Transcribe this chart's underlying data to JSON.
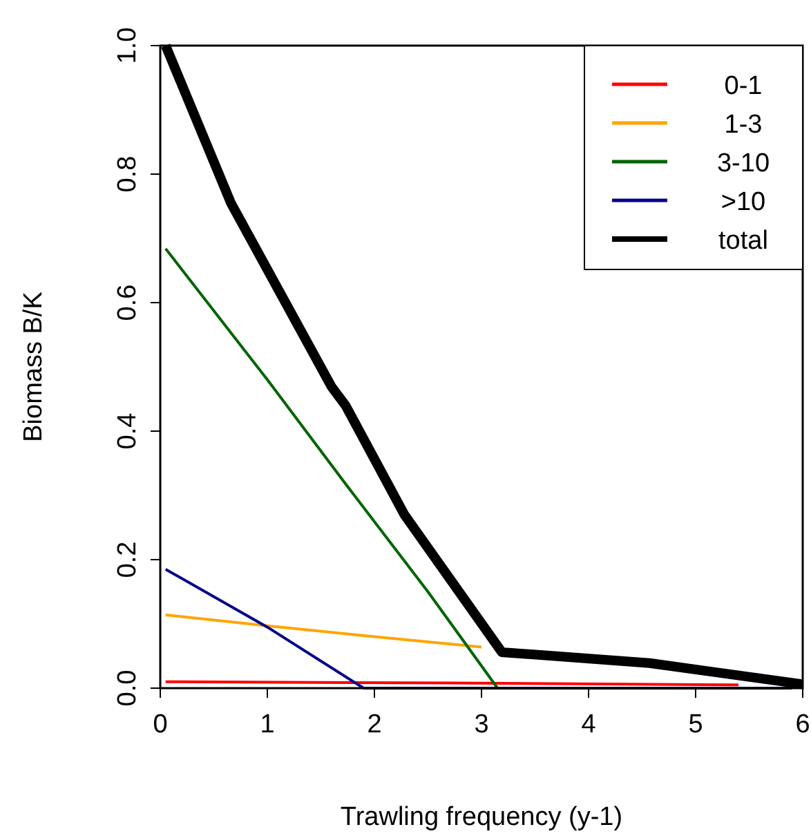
{
  "chart_data": {
    "type": "line",
    "xlabel": "Trawling frequency (y-1)",
    "ylabel": "Biomass B/K",
    "xlim": [
      0,
      6
    ],
    "xticks": [
      0,
      1,
      2,
      3,
      4,
      5,
      6
    ],
    "ylim": [
      0,
      1
    ],
    "yticks": [
      {
        "value": 0,
        "label": "0.0"
      },
      {
        "value": 0.2,
        "label": "0.2"
      },
      {
        "value": 0.4,
        "label": "0.4"
      },
      {
        "value": 0.6,
        "label": "0.6"
      },
      {
        "value": 0.8,
        "label": "0.8"
      },
      {
        "value": 1,
        "label": "1.0"
      }
    ],
    "legend": "top right",
    "grid": false,
    "series": [
      {
        "name": "0-1",
        "color": "#ff0000",
        "x": [
          0.05,
          2.7,
          5.4
        ],
        "values": [
          0.01,
          0.008,
          0.005
        ]
      },
      {
        "name": "1-3",
        "color": "#ffa500",
        "x": [
          0.05,
          1,
          2,
          3.0
        ],
        "values": [
          0.114,
          0.097,
          0.08,
          0.064
        ]
      },
      {
        "name": "3-10",
        "color": "#006400",
        "x": [
          0.05,
          1,
          1.73,
          2.5,
          3.15
        ],
        "values": [
          0.684,
          0.48,
          0.318,
          0.15,
          0
        ]
      },
      {
        "name": ">10",
        "color": "#00008b",
        "x": [
          0.05,
          1,
          1.9,
          5.9
        ],
        "values": [
          0.185,
          0.095,
          0,
          0
        ]
      },
      {
        "name": "total",
        "color": "#000000",
        "x": [
          0.05,
          0.66,
          1.6,
          1.73,
          2.28,
          3.19,
          4.57,
          6
        ],
        "values": [
          1,
          0.755,
          0.469,
          0.44,
          0.27,
          0.056,
          0.039,
          0.006
        ]
      }
    ]
  }
}
